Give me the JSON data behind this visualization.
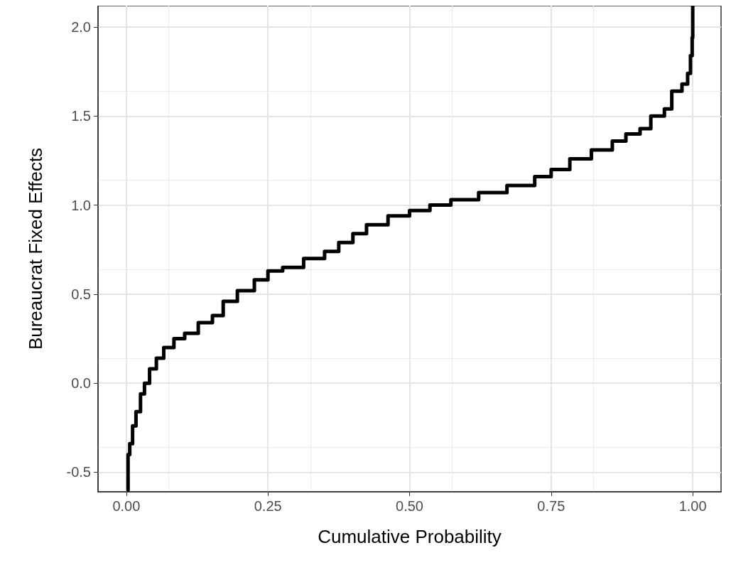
{
  "chart_data": {
    "type": "step",
    "xlabel": "Cumulative Probability",
    "ylabel": "Bureaucrat Fixed Effects",
    "xlim": [
      -0.05,
      1.05
    ],
    "ylim": [
      -0.61,
      2.12
    ],
    "xticks": [
      {
        "value": 0,
        "label": "0.00"
      },
      {
        "value": 0.25,
        "label": "0.25"
      },
      {
        "value": 0.5,
        "label": "0.50"
      },
      {
        "value": 0.75,
        "label": "0.75"
      },
      {
        "value": 1,
        "label": "1.00"
      }
    ],
    "yticks": [
      -0.5,
      {
        "value": 0,
        "label": "0.0"
      },
      0.5,
      {
        "value": 1,
        "label": "1.0"
      },
      1.5,
      {
        "value": 2,
        "label": "2.0"
      }
    ],
    "grid": true,
    "line_style": "solid",
    "marker": "none",
    "series": [
      {
        "color": "#000000",
        "x": [
          0.003,
          0.003,
          0.006,
          0.011,
          0.017,
          0.025,
          0.032,
          0.041,
          0.053,
          0.066,
          0.084,
          0.103,
          0.127,
          0.152,
          0.171,
          0.196,
          0.226,
          0.25,
          0.276,
          0.313,
          0.35,
          0.375,
          0.4,
          0.424,
          0.462,
          0.5,
          0.536,
          0.573,
          0.622,
          0.672,
          0.721,
          0.75,
          0.783,
          0.821,
          0.858,
          0.882,
          0.907,
          0.926,
          0.95,
          0.963,
          0.981,
          0.991,
          0.996,
          0.999,
          1.0
        ],
        "values": [
          -0.6,
          -0.4,
          -0.34,
          -0.24,
          -0.16,
          -0.06,
          0.0,
          0.08,
          0.14,
          0.2,
          0.25,
          0.28,
          0.34,
          0.38,
          0.46,
          0.52,
          0.58,
          0.63,
          0.65,
          0.7,
          0.74,
          0.79,
          0.84,
          0.89,
          0.94,
          0.97,
          1.0,
          1.03,
          1.07,
          1.11,
          1.16,
          1.2,
          1.26,
          1.31,
          1.36,
          1.4,
          1.43,
          1.5,
          1.54,
          1.64,
          1.68,
          1.74,
          1.84,
          1.94,
          2.12
        ]
      }
    ]
  }
}
